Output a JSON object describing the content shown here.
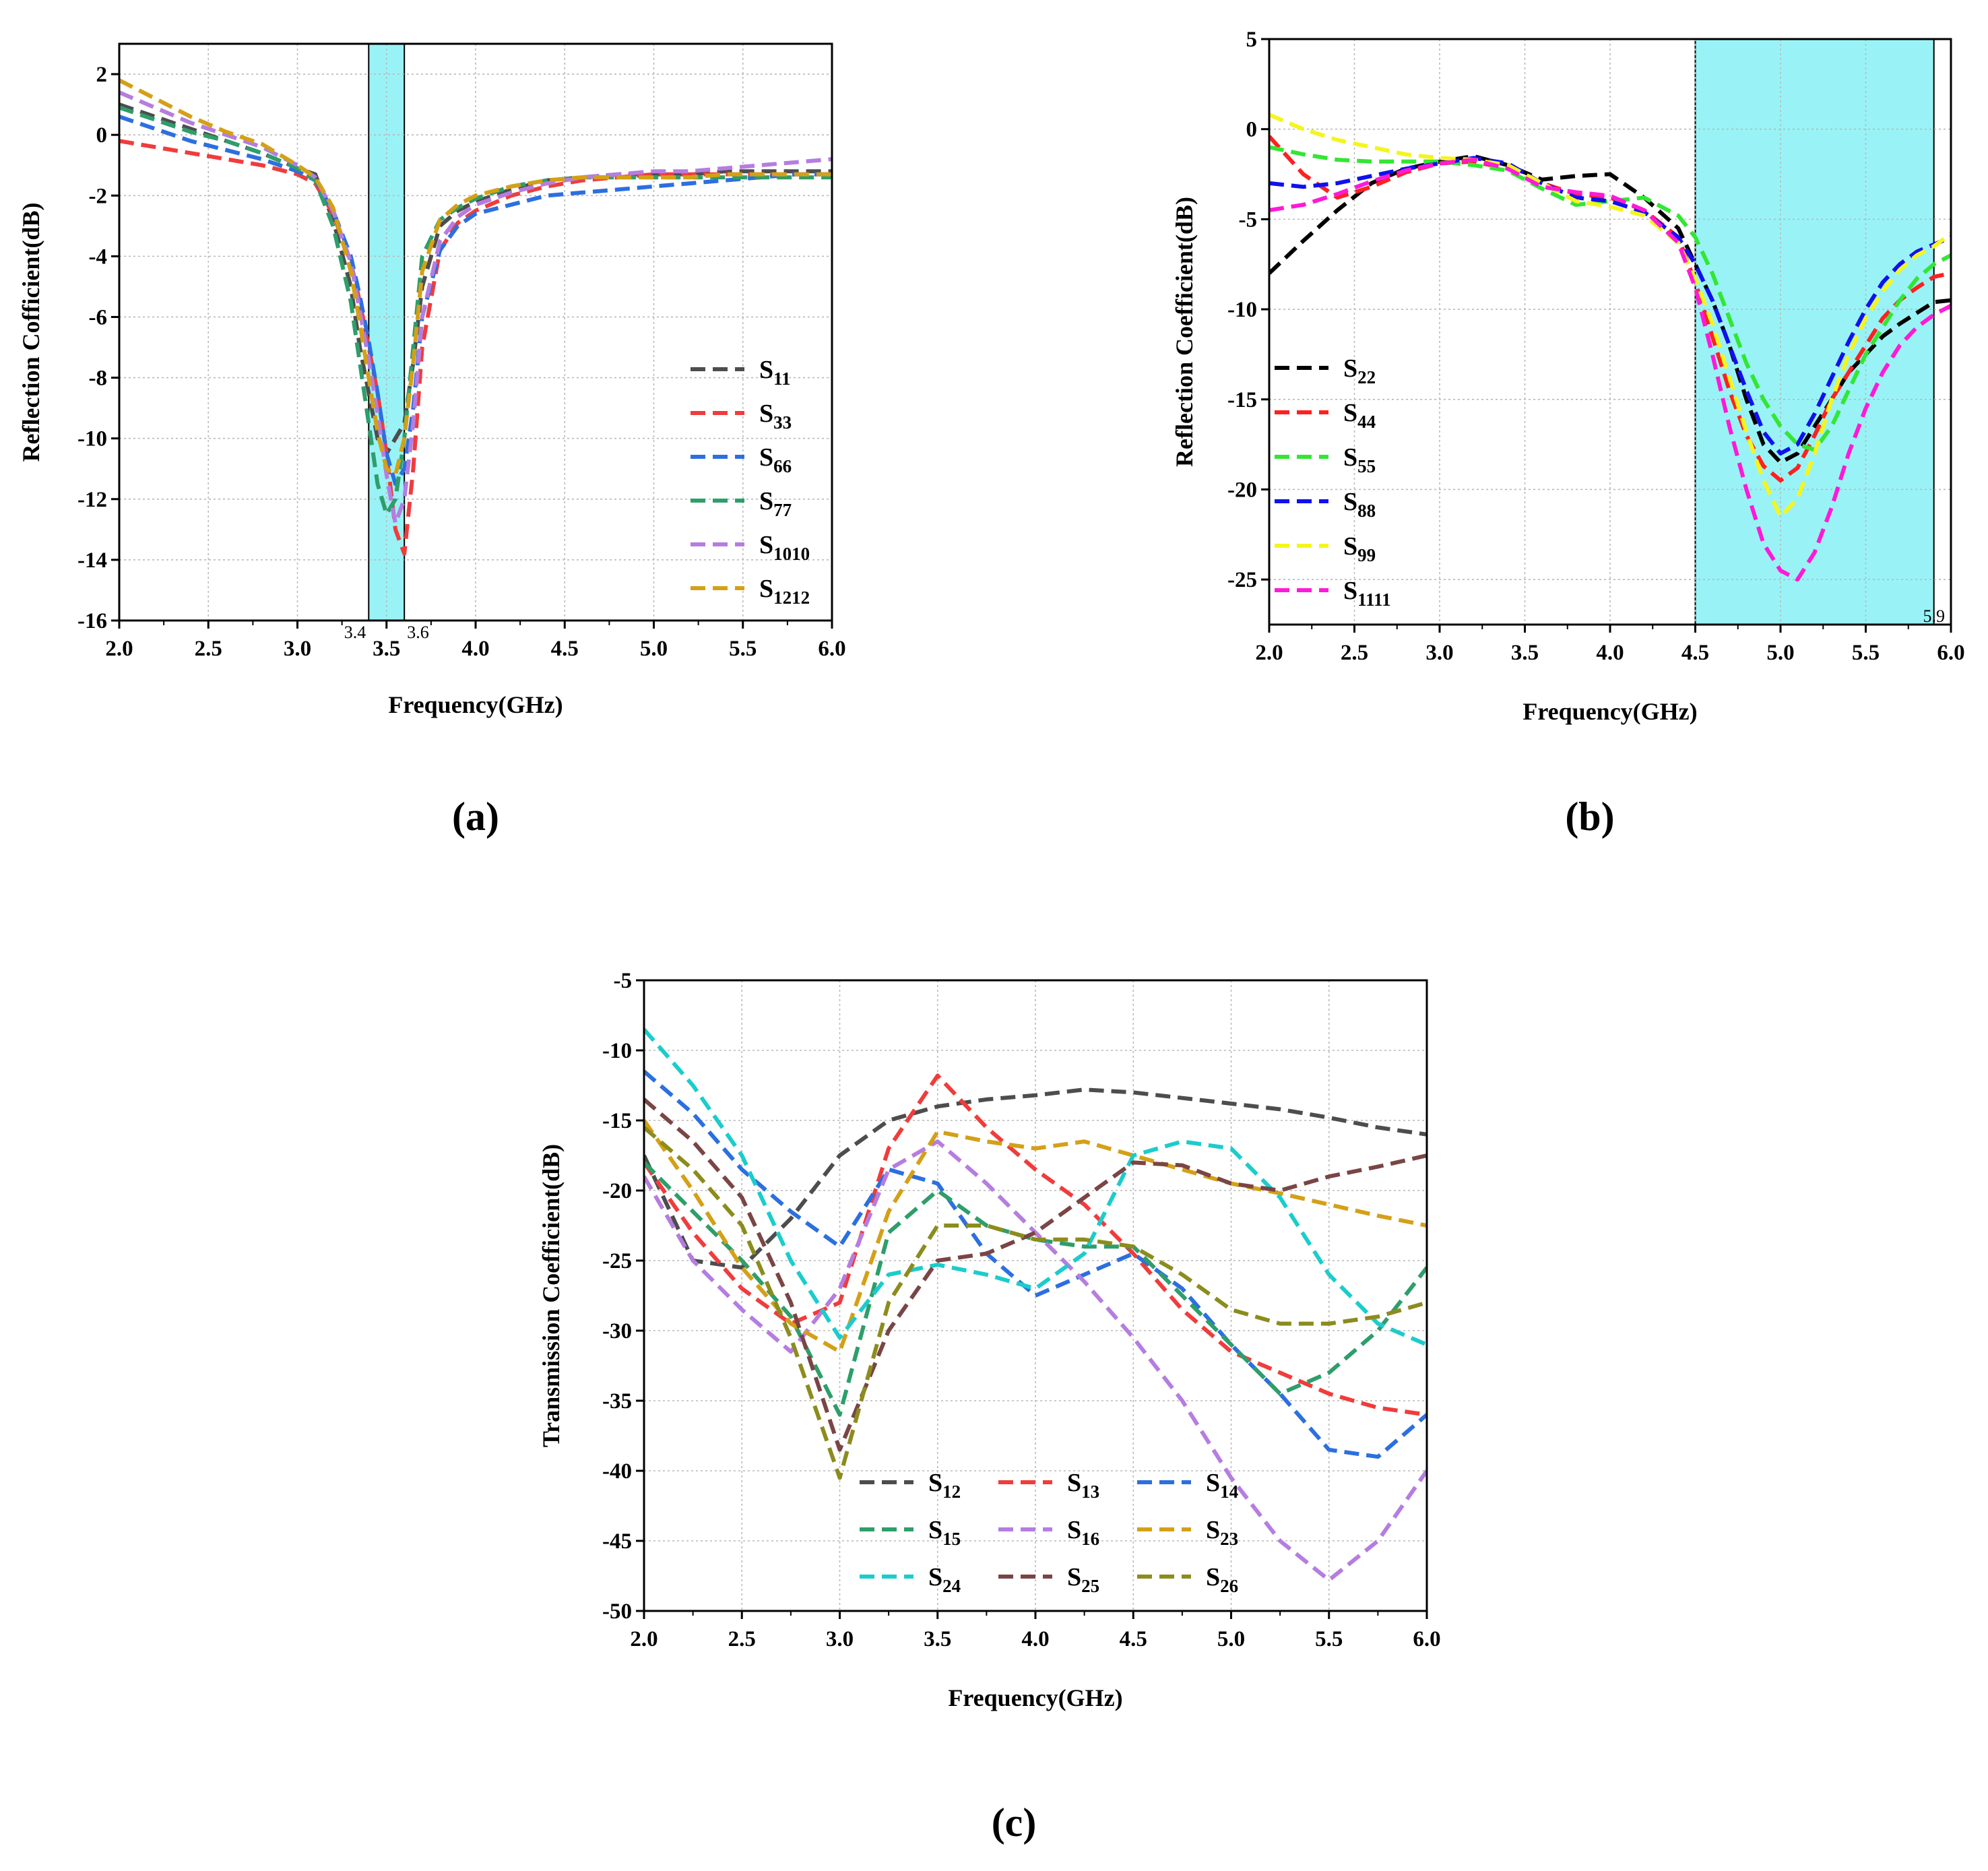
{
  "chart_data": [
    {
      "id": "a",
      "type": "line",
      "panel_label": "(a)",
      "title": "",
      "xlabel": "Frequency(GHz)",
      "ylabel": "Reflection Cofficient(dB)",
      "xlim": [
        2.0,
        6.0
      ],
      "ylim": [
        -16,
        3
      ],
      "xticks": [
        2.0,
        2.5,
        3.0,
        3.5,
        4.0,
        4.5,
        5.0,
        5.5,
        6.0
      ],
      "yticks": [
        2,
        0,
        -2,
        -4,
        -6,
        -8,
        -10,
        -12,
        -14,
        -16
      ],
      "xtick_labels": [
        "2.0",
        "2.5",
        "3.0",
        "3.5",
        "4.0",
        "4.5",
        "5.0",
        "5.5",
        "6.0"
      ],
      "ytick_labels": [
        "2",
        "0",
        "-2",
        "-4",
        "-6",
        "-8",
        "-10",
        "-12",
        "-14",
        "-16"
      ],
      "band": {
        "from": 3.4,
        "to": 3.6,
        "color": "#99f3f6",
        "labels": [
          "3.4",
          "3.6"
        ]
      },
      "grid": true,
      "legend_position": "bottom-right",
      "x": [
        2.0,
        2.2,
        2.4,
        2.6,
        2.8,
        3.0,
        3.1,
        3.2,
        3.3,
        3.35,
        3.4,
        3.45,
        3.5,
        3.55,
        3.6,
        3.65,
        3.7,
        3.8,
        3.9,
        4.0,
        4.2,
        4.4,
        4.6,
        4.8,
        5.0,
        5.2,
        5.4,
        5.6,
        5.8,
        6.0
      ],
      "series": [
        {
          "name": "S",
          "sub": "11",
          "color": "#4d4d4d",
          "values": [
            1.0,
            0.6,
            0.2,
            -0.2,
            -0.6,
            -1.1,
            -1.3,
            -2.8,
            -5.0,
            -7.0,
            -8.5,
            -10.0,
            -10.5,
            -10.0,
            -9.5,
            -7.5,
            -5.0,
            -3.0,
            -2.5,
            -2.2,
            -1.8,
            -1.5,
            -1.4,
            -1.3,
            -1.3,
            -1.3,
            -1.2,
            -1.2,
            -1.2,
            -1.2
          ]
        },
        {
          "name": "S",
          "sub": "33",
          "color": "#f03c3c",
          "values": [
            -0.2,
            -0.4,
            -0.6,
            -0.8,
            -1.0,
            -1.3,
            -1.6,
            -2.6,
            -4.2,
            -5.5,
            -7.0,
            -8.5,
            -10.5,
            -13.0,
            -13.8,
            -11.0,
            -7.0,
            -3.8,
            -2.9,
            -2.5,
            -2.0,
            -1.7,
            -1.5,
            -1.4,
            -1.3,
            -1.3,
            -1.3,
            -1.3,
            -1.3,
            -1.3
          ]
        },
        {
          "name": "S",
          "sub": "66",
          "color": "#2c6fe0",
          "values": [
            0.6,
            0.2,
            -0.2,
            -0.5,
            -0.8,
            -1.2,
            -1.5,
            -2.5,
            -4.0,
            -5.3,
            -6.8,
            -8.5,
            -10.5,
            -11.5,
            -11.0,
            -9.0,
            -6.0,
            -3.8,
            -3.0,
            -2.6,
            -2.3,
            -2.0,
            -1.9,
            -1.8,
            -1.7,
            -1.6,
            -1.5,
            -1.4,
            -1.3,
            -1.3
          ]
        },
        {
          "name": "S",
          "sub": "77",
          "color": "#2e9e6a",
          "values": [
            0.9,
            0.5,
            0.1,
            -0.2,
            -0.6,
            -1.1,
            -1.5,
            -3.0,
            -5.5,
            -7.5,
            -9.5,
            -11.5,
            -12.5,
            -12.0,
            -10.0,
            -7.0,
            -4.0,
            -2.8,
            -2.4,
            -2.1,
            -1.7,
            -1.5,
            -1.4,
            -1.4,
            -1.4,
            -1.4,
            -1.4,
            -1.4,
            -1.4,
            -1.4
          ]
        },
        {
          "name": "S",
          "sub": "1010",
          "color": "#b57de0",
          "values": [
            1.4,
            0.9,
            0.4,
            0.0,
            -0.4,
            -1.0,
            -1.4,
            -2.5,
            -4.2,
            -5.8,
            -7.4,
            -9.2,
            -11.2,
            -12.8,
            -12.0,
            -9.5,
            -6.0,
            -3.5,
            -2.7,
            -2.3,
            -1.9,
            -1.6,
            -1.4,
            -1.3,
            -1.2,
            -1.2,
            -1.1,
            -1.0,
            -0.9,
            -0.8
          ]
        },
        {
          "name": "S",
          "sub": "1212",
          "color": "#d4a017",
          "values": [
            1.8,
            1.2,
            0.6,
            0.1,
            -0.3,
            -1.0,
            -1.4,
            -2.4,
            -4.5,
            -6.2,
            -8.0,
            -9.8,
            -11.0,
            -11.2,
            -10.0,
            -7.5,
            -4.5,
            -2.8,
            -2.3,
            -2.0,
            -1.7,
            -1.5,
            -1.4,
            -1.4,
            -1.4,
            -1.4,
            -1.3,
            -1.3,
            -1.3,
            -1.3
          ]
        }
      ]
    },
    {
      "id": "b",
      "type": "line",
      "panel_label": "(b)",
      "title": "",
      "xlabel": "Frequency(GHz)",
      "ylabel": "Reflection Coefficient(dB)",
      "xlim": [
        2.0,
        6.0
      ],
      "ylim": [
        -27.5,
        5
      ],
      "xticks": [
        2.0,
        2.5,
        3.0,
        3.5,
        4.0,
        4.5,
        5.0,
        5.5,
        6.0
      ],
      "yticks": [
        5,
        0,
        -5,
        -10,
        -15,
        -20,
        -25
      ],
      "xtick_labels": [
        "2.0",
        "2.5",
        "3.0",
        "3.5",
        "4.0",
        "4.5",
        "5.0",
        "5.5",
        "6.0"
      ],
      "ytick_labels": [
        "5",
        "0",
        "-5",
        "-10",
        "-15",
        "-20",
        "-25"
      ],
      "band": {
        "from": 4.5,
        "to": 5.9,
        "color": "#99f3f6",
        "labels": [
          "5.9"
        ]
      },
      "grid": true,
      "legend_position": "bottom-left",
      "x": [
        2.0,
        2.2,
        2.4,
        2.6,
        2.8,
        3.0,
        3.2,
        3.4,
        3.6,
        3.8,
        4.0,
        4.2,
        4.4,
        4.5,
        4.6,
        4.7,
        4.8,
        4.9,
        5.0,
        5.1,
        5.2,
        5.3,
        5.4,
        5.5,
        5.6,
        5.7,
        5.8,
        5.9,
        6.0
      ],
      "series": [
        {
          "name": "S",
          "sub": "22",
          "color": "#000000",
          "values": [
            -8.0,
            -6.2,
            -4.5,
            -3.0,
            -2.2,
            -1.8,
            -1.5,
            -2.0,
            -2.8,
            -2.6,
            -2.5,
            -3.8,
            -5.5,
            -7.5,
            -9.5,
            -12.0,
            -15.0,
            -17.5,
            -18.5,
            -18.0,
            -16.5,
            -15.0,
            -13.5,
            -12.5,
            -11.5,
            -10.8,
            -10.2,
            -9.6,
            -9.5
          ]
        },
        {
          "name": "S",
          "sub": "44",
          "color": "#ff2020",
          "values": [
            -0.4,
            -2.5,
            -3.8,
            -3.2,
            -2.4,
            -1.9,
            -1.8,
            -2.2,
            -3.0,
            -3.6,
            -3.8,
            -4.5,
            -6.0,
            -8.5,
            -11.5,
            -14.5,
            -17.0,
            -18.7,
            -19.5,
            -18.8,
            -17.0,
            -15.0,
            -13.5,
            -12.0,
            -10.5,
            -9.5,
            -8.8,
            -8.2,
            -8.0
          ]
        },
        {
          "name": "S",
          "sub": "55",
          "color": "#33e633",
          "values": [
            -1.0,
            -1.4,
            -1.7,
            -1.8,
            -1.8,
            -1.8,
            -2.0,
            -2.3,
            -3.3,
            -4.2,
            -4.0,
            -3.8,
            -4.8,
            -6.0,
            -8.0,
            -10.5,
            -13.0,
            -15.0,
            -16.5,
            -17.5,
            -17.8,
            -16.5,
            -14.5,
            -12.5,
            -11.0,
            -9.5,
            -8.3,
            -7.5,
            -7.0
          ]
        },
        {
          "name": "S",
          "sub": "88",
          "color": "#1010f0",
          "values": [
            -3.0,
            -3.2,
            -3.0,
            -2.6,
            -2.2,
            -1.9,
            -1.6,
            -1.9,
            -3.0,
            -3.8,
            -4.0,
            -4.6,
            -6.0,
            -7.5,
            -9.5,
            -12.0,
            -14.5,
            -16.8,
            -18.0,
            -17.5,
            -15.8,
            -13.8,
            -11.8,
            -10.0,
            -8.5,
            -7.5,
            -6.8,
            -6.4,
            -6.0
          ]
        },
        {
          "name": "S",
          "sub": "99",
          "color": "#f5f51e",
          "values": [
            0.8,
            0.0,
            -0.6,
            -1.0,
            -1.4,
            -1.6,
            -1.7,
            -2.0,
            -3.0,
            -4.0,
            -4.3,
            -4.8,
            -6.3,
            -8.3,
            -10.8,
            -13.8,
            -16.8,
            -19.5,
            -21.5,
            -20.5,
            -18.0,
            -15.0,
            -12.5,
            -10.5,
            -9.0,
            -7.8,
            -7.0,
            -6.5,
            -5.8
          ]
        },
        {
          "name": "S",
          "sub": "1111",
          "color": "#ff19d8",
          "values": [
            -4.5,
            -4.2,
            -3.6,
            -2.9,
            -2.3,
            -1.9,
            -1.7,
            -2.2,
            -3.2,
            -3.5,
            -3.7,
            -4.5,
            -6.3,
            -8.8,
            -12.5,
            -16.5,
            -20.0,
            -23.0,
            -24.5,
            -25.0,
            -23.5,
            -21.0,
            -18.0,
            -15.5,
            -13.5,
            -12.0,
            -11.0,
            -10.3,
            -9.8
          ]
        }
      ]
    },
    {
      "id": "c",
      "type": "line",
      "panel_label": "(c)",
      "title": "",
      "xlabel": "Frequency(GHz)",
      "ylabel": "Transmission Coefficient(dB)",
      "xlim": [
        2.0,
        6.0
      ],
      "ylim": [
        -50,
        -5
      ],
      "xticks": [
        2.0,
        2.5,
        3.0,
        3.5,
        4.0,
        4.5,
        5.0,
        5.5,
        6.0
      ],
      "yticks": [
        -5,
        -10,
        -15,
        -20,
        -25,
        -30,
        -35,
        -40,
        -45,
        -50
      ],
      "xtick_labels": [
        "2.0",
        "2.5",
        "3.0",
        "3.5",
        "4.0",
        "4.5",
        "5.0",
        "5.5",
        "6.0"
      ],
      "ytick_labels": [
        "-5",
        "-10",
        "-15",
        "-20",
        "-25",
        "-30",
        "-35",
        "-40",
        "-45",
        "-50"
      ],
      "grid": true,
      "legend_position": "bottom-center",
      "x": [
        2.0,
        2.25,
        2.5,
        2.75,
        3.0,
        3.25,
        3.5,
        3.75,
        4.0,
        4.25,
        4.5,
        4.75,
        5.0,
        5.25,
        5.5,
        5.75,
        6.0
      ],
      "series": [
        {
          "name": "S",
          "sub": "12",
          "color": "#4d4d4d",
          "values": [
            -17.5,
            -25.0,
            -25.5,
            -22.0,
            -17.5,
            -15.0,
            -14.0,
            -13.5,
            -13.2,
            -12.8,
            -13.0,
            -13.4,
            -13.8,
            -14.2,
            -14.8,
            -15.5,
            -16.0
          ]
        },
        {
          "name": "S",
          "sub": "13",
          "color": "#f03c3c",
          "values": [
            -18.0,
            -23.0,
            -27.0,
            -29.5,
            -28.0,
            -17.0,
            -11.8,
            -15.5,
            -18.5,
            -21.0,
            -24.5,
            -28.5,
            -31.5,
            -33.0,
            -34.5,
            -35.5,
            -36.0
          ]
        },
        {
          "name": "S",
          "sub": "14",
          "color": "#2c6fe0",
          "values": [
            -11.5,
            -14.5,
            -18.5,
            -21.5,
            -24.0,
            -18.5,
            -19.5,
            -24.5,
            -27.5,
            -26.0,
            -24.5,
            -27.0,
            -31.0,
            -34.5,
            -38.5,
            -39.0,
            -36.0
          ]
        },
        {
          "name": "S",
          "sub": "15",
          "color": "#2e9e6a",
          "values": [
            -18.0,
            -21.5,
            -25.0,
            -29.0,
            -36.0,
            -23.0,
            -20.0,
            -22.5,
            -23.5,
            -24.0,
            -24.0,
            -27.5,
            -31.0,
            -34.5,
            -33.0,
            -30.0,
            -25.5
          ]
        },
        {
          "name": "S",
          "sub": "16",
          "color": "#b57de0",
          "values": [
            -19.0,
            -25.0,
            -28.5,
            -31.5,
            -27.0,
            -18.5,
            -16.5,
            -19.5,
            -23.0,
            -26.5,
            -30.5,
            -35.0,
            -40.5,
            -45.0,
            -47.8,
            -45.0,
            -40.0
          ]
        },
        {
          "name": "S",
          "sub": "23",
          "color": "#d4a017",
          "values": [
            -15.0,
            -20.0,
            -25.5,
            -29.5,
            -31.5,
            -21.5,
            -15.8,
            -16.5,
            -17.0,
            -16.5,
            -17.5,
            -18.5,
            -19.5,
            -20.2,
            -21.0,
            -21.8,
            -22.5
          ]
        },
        {
          "name": "S",
          "sub": "24",
          "color": "#1ccccc",
          "values": [
            -8.5,
            -12.5,
            -17.5,
            -25.0,
            -30.5,
            -26.0,
            -25.3,
            -26.0,
            -27.0,
            -24.5,
            -17.5,
            -16.5,
            -17.0,
            -20.5,
            -26.0,
            -29.5,
            -31.0
          ]
        },
        {
          "name": "S",
          "sub": "25",
          "color": "#7a4545",
          "values": [
            -13.5,
            -16.5,
            -20.5,
            -28.0,
            -38.5,
            -30.0,
            -25.0,
            -24.5,
            -23.0,
            -20.5,
            -18.0,
            -18.2,
            -19.5,
            -20.0,
            -19.0,
            -18.3,
            -17.5
          ]
        },
        {
          "name": "S",
          "sub": "26",
          "color": "#8c8c1e",
          "values": [
            -15.5,
            -18.5,
            -22.5,
            -30.5,
            -40.5,
            -28.0,
            -22.5,
            -22.5,
            -23.5,
            -23.5,
            -24.0,
            -26.0,
            -28.5,
            -29.5,
            -29.5,
            -29.0,
            -28.0
          ]
        }
      ]
    }
  ]
}
